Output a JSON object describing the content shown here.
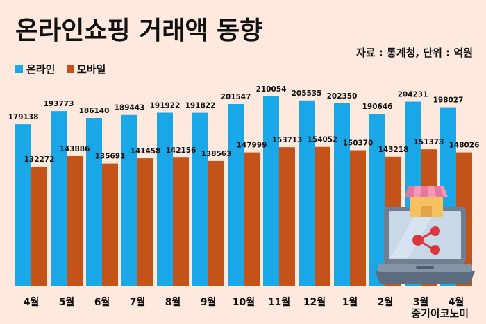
{
  "chart_data": {
    "type": "bar",
    "title": "온라인쇼핑 거래액 동향",
    "source_note": "자료 : 통계청, 단위 : 억원",
    "categories": [
      "4월",
      "5월",
      "6월",
      "7월",
      "8월",
      "9월",
      "10월",
      "11월",
      "12월",
      "1월",
      "2월",
      "3월",
      "4월"
    ],
    "series": [
      {
        "name": "온라인",
        "color": "#1aa7e8",
        "values": [
          179138,
          193773,
          186140,
          189443,
          191922,
          191822,
          201547,
          210054,
          205535,
          202350,
          190646,
          204231,
          198027
        ]
      },
      {
        "name": "모바일",
        "color": "#c4531a",
        "values": [
          132272,
          143886,
          135691,
          141458,
          142156,
          138563,
          147999,
          153713,
          154052,
          150370,
          143218,
          151373,
          148026
        ]
      }
    ],
    "ylim": [
      0,
      240000
    ],
    "legend": "top-left",
    "grid": false,
    "xlabel": "",
    "ylabel": ""
  },
  "brand": "중기이코노미",
  "icons": {
    "illustration": "laptop-store-share-icon"
  }
}
